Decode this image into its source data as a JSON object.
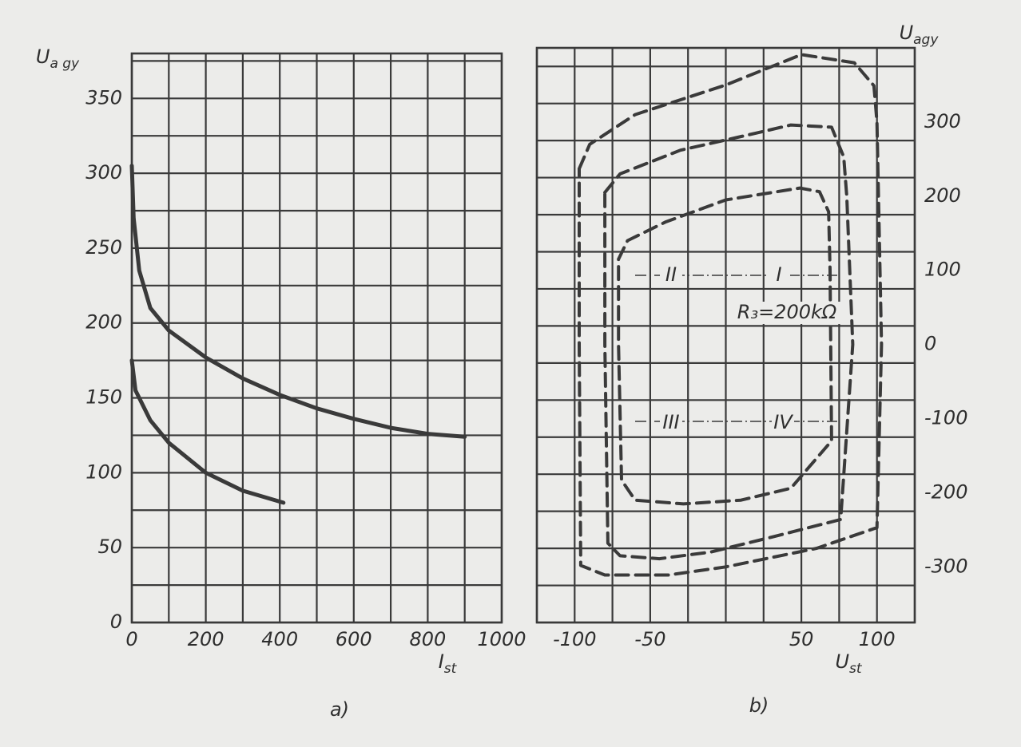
{
  "chart_data": [
    {
      "type": "line",
      "panel_label": "a)",
      "x_label": {
        "text": "I",
        "sub": "st"
      },
      "y_label": {
        "text": "U",
        "sub": "a gy"
      },
      "xlim": [
        0,
        1000
      ],
      "ylim": [
        0,
        380
      ],
      "xticks": [
        0,
        200,
        400,
        600,
        800,
        1000
      ],
      "yticks": [
        0,
        50,
        100,
        150,
        200,
        250,
        300,
        350
      ],
      "grid_x": [
        0,
        100,
        200,
        300,
        400,
        500,
        600,
        700,
        800,
        900,
        1000
      ],
      "grid_y": [
        0,
        25,
        50,
        75,
        100,
        125,
        150,
        175,
        200,
        225,
        250,
        275,
        300,
        325,
        350,
        375
      ],
      "color": "#3a3a3a",
      "dashed": false,
      "y_axis_side": "left",
      "series": [
        {
          "x": [
            0,
            5,
            20,
            50,
            100,
            200,
            300,
            400,
            500,
            600,
            700,
            800,
            900
          ],
          "values": [
            305,
            270,
            235,
            210,
            195,
            177,
            163,
            152,
            143,
            136,
            130,
            126,
            124
          ]
        },
        {
          "x": [
            0,
            10,
            50,
            100,
            200,
            300,
            410
          ],
          "values": [
            175,
            155,
            135,
            120,
            100,
            88,
            80
          ]
        }
      ]
    },
    {
      "type": "line",
      "panel_label": "b)",
      "x_label": {
        "text": "U",
        "sub": "st"
      },
      "y_label": {
        "text": "U",
        "sub": "agy"
      },
      "xlim": [
        -125,
        125
      ],
      "ylim": [
        -375,
        400
      ],
      "xticks": [
        -100,
        -50,
        50,
        100
      ],
      "yticks": [
        -300,
        -200,
        -100,
        0,
        100,
        200,
        300
      ],
      "grid_x": [
        -125,
        -100,
        -75,
        -50,
        -25,
        0,
        25,
        50,
        75,
        100,
        125
      ],
      "grid_y": [
        -375,
        -325,
        -275,
        -225,
        -175,
        -125,
        -75,
        -25,
        25,
        75,
        125,
        175,
        225,
        275,
        325,
        375
      ],
      "color": "#3a3a3a",
      "dashed": true,
      "y_axis_side": "right",
      "series": [
        {
          "x": [
            -97,
            -90,
            -60,
            0,
            50,
            85,
            98,
            100,
            103,
            100,
            60,
            0,
            -38,
            -80,
            -96,
            -97,
            -97
          ],
          "values": [
            237,
            270,
            310,
            350,
            391,
            380,
            349,
            300,
            0,
            -247,
            -275,
            -300,
            -311,
            -311,
            -298,
            0,
            237
          ]
        },
        {
          "x": [
            -80,
            -70,
            -30,
            20,
            43,
            70,
            78,
            80,
            84,
            76,
            30,
            -10,
            -44,
            -70,
            -78,
            -80,
            -80
          ],
          "values": [
            205,
            230,
            262,
            285,
            296,
            293,
            253,
            200,
            0,
            -236,
            -260,
            -280,
            -289,
            -285,
            -268,
            0,
            205
          ]
        },
        {
          "x": [
            -71,
            -65,
            -40,
            0,
            49,
            62,
            68,
            69,
            70,
            43,
            10,
            -28,
            -60,
            -69,
            -71,
            -71
          ],
          "values": [
            115,
            140,
            165,
            195,
            211,
            206,
            179,
            100,
            -130,
            -194,
            -210,
            -215,
            -210,
            -183,
            0,
            115
          ]
        }
      ],
      "annotations": [
        "II",
        "I",
        "III",
        "IV",
        "R₃=200kΩ"
      ]
    }
  ]
}
